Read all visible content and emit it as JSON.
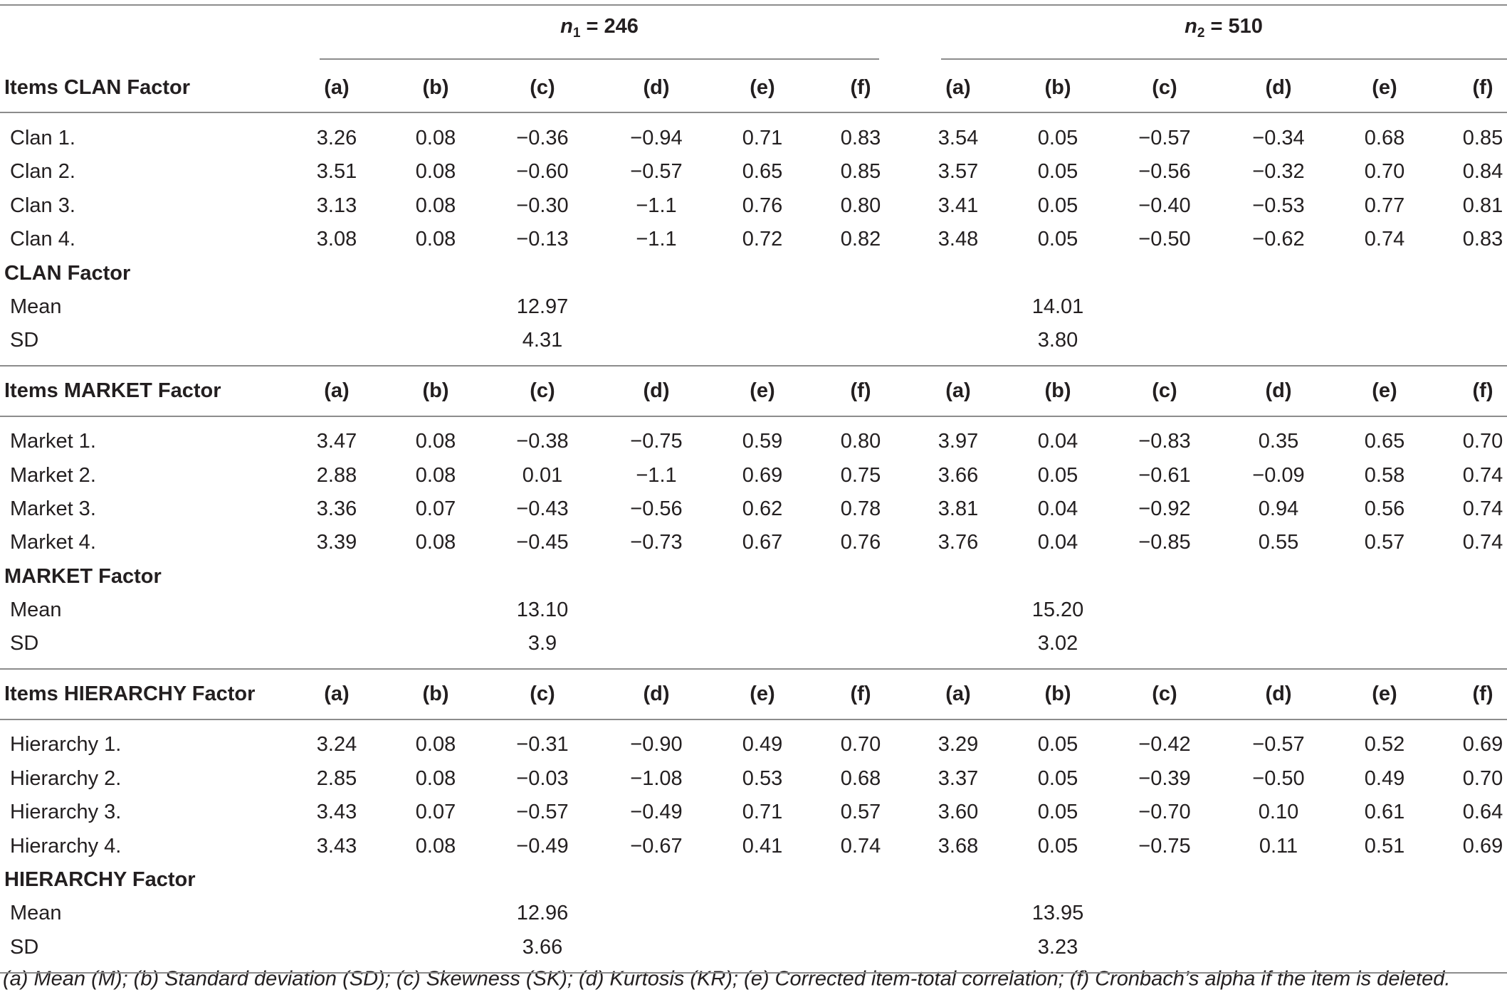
{
  "groups": [
    {
      "var": "n",
      "sub": "1",
      "value": "= 246"
    },
    {
      "var": "n",
      "sub": "2",
      "value": "= 510"
    }
  ],
  "col_labels": [
    "(a)",
    "(b)",
    "(c)",
    "(d)",
    "(e)",
    "(f)"
  ],
  "sections": [
    {
      "header": "Items CLAN Factor",
      "items": [
        {
          "label": "Clan 1.",
          "n1": [
            "3.26",
            "0.08",
            "−0.36",
            "−0.94",
            "0.71",
            "0.83"
          ],
          "n2": [
            "3.54",
            "0.05",
            "−0.57",
            "−0.34",
            "0.68",
            "0.85"
          ]
        },
        {
          "label": "Clan 2.",
          "n1": [
            "3.51",
            "0.08",
            "−0.60",
            "−0.57",
            "0.65",
            "0.85"
          ],
          "n2": [
            "3.57",
            "0.05",
            "−0.56",
            "−0.32",
            "0.70",
            "0.84"
          ]
        },
        {
          "label": "Clan 3.",
          "n1": [
            "3.13",
            "0.08",
            "−0.30",
            "−1.1",
            "0.76",
            "0.80"
          ],
          "n2": [
            "3.41",
            "0.05",
            "−0.40",
            "−0.53",
            "0.77",
            "0.81"
          ]
        },
        {
          "label": "Clan 4.",
          "n1": [
            "3.08",
            "0.08",
            "−0.13",
            "−1.1",
            "0.72",
            "0.82"
          ],
          "n2": [
            "3.48",
            "0.05",
            "−0.50",
            "−0.62",
            "0.74",
            "0.83"
          ]
        }
      ],
      "factor": "CLAN Factor",
      "mean_label": "Mean",
      "mean_n1": "12.97",
      "mean_n2": "14.01",
      "sd_label": "SD",
      "sd_n1": "4.31",
      "sd_n2": "3.80"
    },
    {
      "header": "Items MARKET Factor",
      "items": [
        {
          "label": "Market 1.",
          "n1": [
            "3.47",
            "0.08",
            "−0.38",
            "−0.75",
            "0.59",
            "0.80"
          ],
          "n2": [
            "3.97",
            "0.04",
            "−0.83",
            "0.35",
            "0.65",
            "0.70"
          ]
        },
        {
          "label": "Market 2.",
          "n1": [
            "2.88",
            "0.08",
            "0.01",
            "−1.1",
            "0.69",
            "0.75"
          ],
          "n2": [
            "3.66",
            "0.05",
            "−0.61",
            "−0.09",
            "0.58",
            "0.74"
          ]
        },
        {
          "label": "Market 3.",
          "n1": [
            "3.36",
            "0.07",
            "−0.43",
            "−0.56",
            "0.62",
            "0.78"
          ],
          "n2": [
            "3.81",
            "0.04",
            "−0.92",
            "0.94",
            "0.56",
            "0.74"
          ]
        },
        {
          "label": "Market 4.",
          "n1": [
            "3.39",
            "0.08",
            "−0.45",
            "−0.73",
            "0.67",
            "0.76"
          ],
          "n2": [
            "3.76",
            "0.04",
            "−0.85",
            "0.55",
            "0.57",
            "0.74"
          ]
        }
      ],
      "factor": "MARKET Factor",
      "mean_label": "Mean",
      "mean_n1": "13.10",
      "mean_n2": "15.20",
      "sd_label": "SD",
      "sd_n1": "3.9",
      "sd_n2": "3.02"
    },
    {
      "header": "Items HIERARCHY Factor",
      "items": [
        {
          "label": "Hierarchy 1.",
          "n1": [
            "3.24",
            "0.08",
            "−0.31",
            "−0.90",
            "0.49",
            "0.70"
          ],
          "n2": [
            "3.29",
            "0.05",
            "−0.42",
            "−0.57",
            "0.52",
            "0.69"
          ]
        },
        {
          "label": "Hierarchy 2.",
          "n1": [
            "2.85",
            "0.08",
            "−0.03",
            "−1.08",
            "0.53",
            "0.68"
          ],
          "n2": [
            "3.37",
            "0.05",
            "−0.39",
            "−0.50",
            "0.49",
            "0.70"
          ]
        },
        {
          "label": "Hierarchy 3.",
          "n1": [
            "3.43",
            "0.07",
            "−0.57",
            "−0.49",
            "0.71",
            "0.57"
          ],
          "n2": [
            "3.60",
            "0.05",
            "−0.70",
            "0.10",
            "0.61",
            "0.64"
          ]
        },
        {
          "label": "Hierarchy 4.",
          "n1": [
            "3.43",
            "0.08",
            "−0.49",
            "−0.67",
            "0.41",
            "0.74"
          ],
          "n2": [
            "3.68",
            "0.05",
            "−0.75",
            "0.11",
            "0.51",
            "0.69"
          ]
        }
      ],
      "factor": "HIERARCHY Factor",
      "mean_label": "Mean",
      "mean_n1": "12.96",
      "mean_n2": "13.95",
      "sd_label": "SD",
      "sd_n1": "3.66",
      "sd_n2": "3.23"
    }
  ],
  "footnote": "(a) Mean (M); (b) Standard deviation (SD); (c) Skewness (SK); (d) Kurtosis (KR); (e) Corrected item-total correlation; (f) Cronbach’s alpha if the item is deleted."
}
